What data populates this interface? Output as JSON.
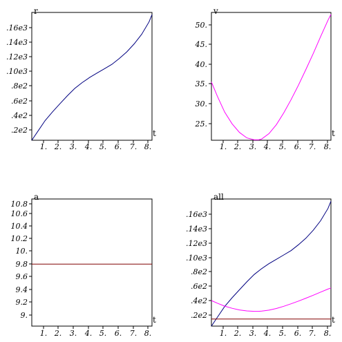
{
  "chart_data": [
    {
      "type": "line",
      "panel": "top-left",
      "title": "r",
      "xlabel": "t",
      "x_ticks": [
        "1.",
        "2.",
        "3.",
        "4.",
        "5.",
        "6.",
        "7.",
        "8."
      ],
      "y_ticks": [
        ".2e2",
        ".4e2",
        ".6e2",
        ".8e2",
        ".10e3",
        ".12e3",
        ".14e3",
        ".16e3"
      ],
      "xlim": [
        0.1,
        8.2
      ],
      "ylim": [
        0,
        175
      ],
      "series": [
        {
          "color": "#000080",
          "x": [
            0.1,
            0.5,
            1,
            1.5,
            2,
            2.5,
            3,
            3.5,
            4,
            4.5,
            5,
            5.5,
            6,
            6.5,
            7,
            7.5,
            8,
            8.2
          ],
          "y": [
            0,
            12,
            27,
            39,
            50,
            61,
            71,
            79,
            86,
            92,
            98,
            104,
            112,
            121,
            132,
            145,
            162,
            172
          ]
        }
      ]
    },
    {
      "type": "line",
      "panel": "top-right",
      "title": "v",
      "xlabel": "t",
      "x_ticks": [
        "1.",
        "2.",
        "3.",
        "4.",
        "5.",
        "6.",
        "7.",
        "8."
      ],
      "y_ticks": [
        "25.",
        "30.",
        "35.",
        "40.",
        "45.",
        "50."
      ],
      "xlim": [
        0.1,
        8.2
      ],
      "ylim": [
        20.3,
        53
      ],
      "series": [
        {
          "color": "#ff00ff",
          "x": [
            0.1,
            0.5,
            1,
            1.5,
            2,
            2.5,
            3,
            3.3,
            3.5,
            4,
            4.5,
            5,
            5.5,
            6,
            6.5,
            7,
            7.5,
            8,
            8.2
          ],
          "y": [
            35.2,
            31.6,
            27.5,
            24.5,
            22.3,
            20.9,
            20.4,
            20.4,
            20.6,
            22.0,
            24.3,
            27.3,
            30.7,
            34.4,
            38.4,
            42.5,
            46.8,
            51.0,
            52.5
          ]
        }
      ]
    },
    {
      "type": "line",
      "panel": "bottom-left",
      "title": "a",
      "xlabel": "t",
      "x_ticks": [
        "1.",
        "2.",
        "3.",
        "4.",
        "5.",
        "6.",
        "7.",
        "8."
      ],
      "y_ticks": [
        "9.",
        "9.2",
        "9.4",
        "9.6",
        "9.8",
        "10.",
        "10.2",
        "10.4",
        "10.6",
        "10.8"
      ],
      "xlim": [
        0.1,
        8.2
      ],
      "ylim": [
        8.8,
        10.85
      ],
      "series": [
        {
          "color": "#800000",
          "x": [
            0.1,
            8.2
          ],
          "y": [
            9.8,
            9.8
          ]
        }
      ]
    },
    {
      "type": "line",
      "panel": "bottom-right",
      "title": "all",
      "xlabel": "t",
      "x_ticks": [
        "1.",
        "2.",
        "3.",
        "4.",
        "5.",
        "6.",
        "7.",
        "8."
      ],
      "y_ticks": [
        ".2e2",
        ".4e2",
        ".6e2",
        ".8e2",
        ".10e3",
        ".12e3",
        ".14e3",
        ".16e3"
      ],
      "xlim": [
        0.1,
        8.2
      ],
      "ylim": [
        0,
        175
      ],
      "series": [
        {
          "color": "#000080",
          "x": [
            0.1,
            0.5,
            1,
            1.5,
            2,
            2.5,
            3,
            3.5,
            4,
            4.5,
            5,
            5.5,
            6,
            6.5,
            7,
            7.5,
            8,
            8.2
          ],
          "y": [
            0,
            12,
            27,
            39,
            50,
            61,
            71,
            79,
            86,
            92,
            98,
            104,
            112,
            121,
            132,
            145,
            162,
            172
          ]
        },
        {
          "color": "#ff00ff",
          "x": [
            0.1,
            0.5,
            1,
            1.5,
            2,
            2.5,
            3,
            3.3,
            3.5,
            4,
            4.5,
            5,
            5.5,
            6,
            6.5,
            7,
            7.5,
            8,
            8.2
          ],
          "y": [
            35.2,
            31.6,
            27.5,
            24.5,
            22.3,
            20.9,
            20.4,
            20.4,
            20.6,
            22.0,
            24.3,
            27.3,
            30.7,
            34.4,
            38.4,
            42.5,
            46.8,
            51.0,
            52.5
          ]
        },
        {
          "color": "#800000",
          "x": [
            0.1,
            8.2
          ],
          "y": [
            9.8,
            9.8
          ]
        }
      ]
    }
  ]
}
